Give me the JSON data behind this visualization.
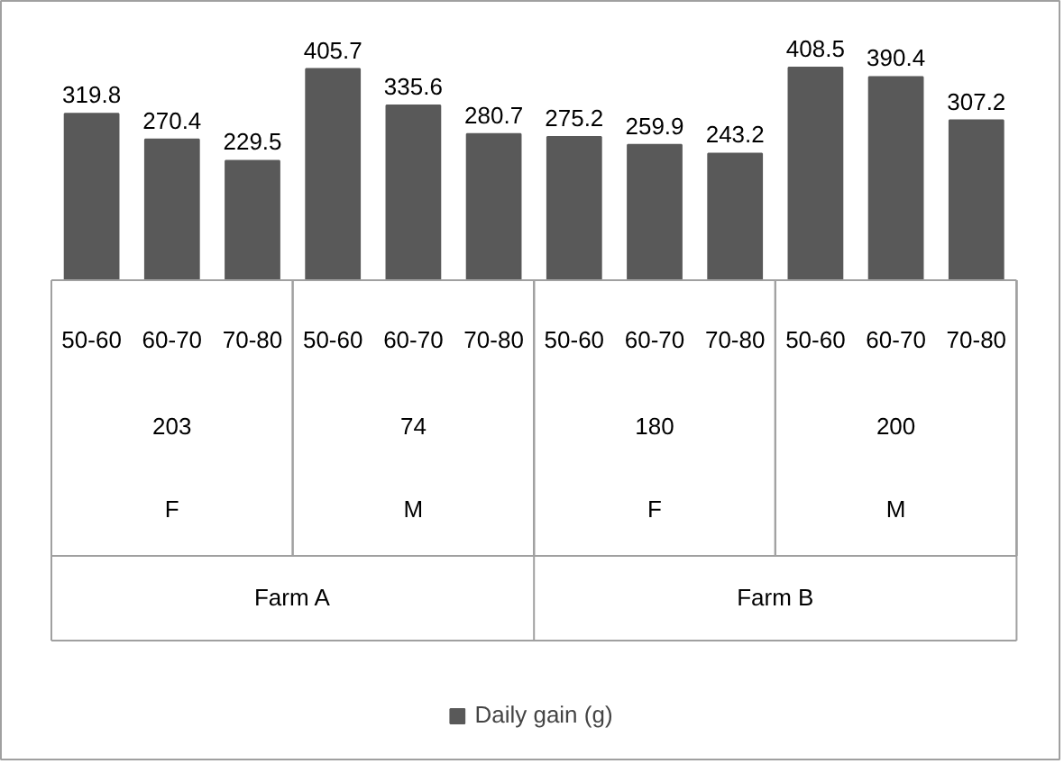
{
  "chart_data": {
    "type": "bar",
    "categories": [
      "50-60",
      "60-70",
      "70-80",
      "50-60",
      "60-70",
      "70-80",
      "50-60",
      "60-70",
      "70-80",
      "50-60",
      "60-70",
      "70-80"
    ],
    "series": [
      {
        "name": "Daily gain (g)",
        "color": "#595959",
        "values": [
          319.8,
          270.4,
          229.5,
          405.7,
          335.6,
          280.7,
          275.2,
          259.9,
          243.2,
          408.5,
          390.4,
          307.2
        ]
      }
    ],
    "annotations": [
      "203",
      "74",
      "180",
      "200",
      "F",
      "M",
      "F",
      "M",
      "Farm A",
      "Farm B"
    ],
    "data_labels": true,
    "legend": "bottom",
    "grid": false
  }
}
